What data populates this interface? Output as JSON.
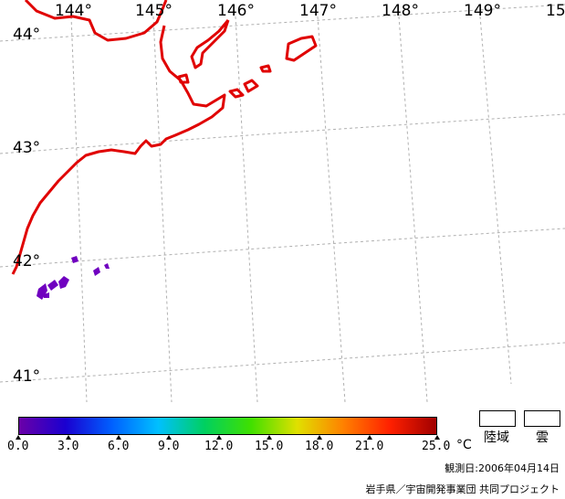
{
  "map": {
    "longitude_labels": [
      "144°",
      "145°",
      "146°",
      "147°",
      "148°",
      "149°",
      "15"
    ],
    "latitude_labels": [
      "44°",
      "43°",
      "42°",
      "41°"
    ]
  },
  "legend": {
    "ticks": [
      "0.0",
      "3.0",
      "6.0",
      "9.0",
      "12.0",
      "15.0",
      "18.0",
      "21.0",
      "25.0"
    ],
    "unit": "°C",
    "land_label": "陸域",
    "cloud_label": "雲",
    "colors": [
      "#6a00a8",
      "#1a00d0",
      "#0060ff",
      "#00c0ff",
      "#00d060",
      "#40e000",
      "#e0e000",
      "#ff8000",
      "#ff2000",
      "#a00000"
    ]
  },
  "observation_date": "観測日:2006年04月14日",
  "credit": "岩手県／宇宙開発事業団 共同プロジェクト",
  "colors": {
    "coastline": "#e00000",
    "grid": "#b0b0b0",
    "sst_patch": "#7000c0"
  }
}
